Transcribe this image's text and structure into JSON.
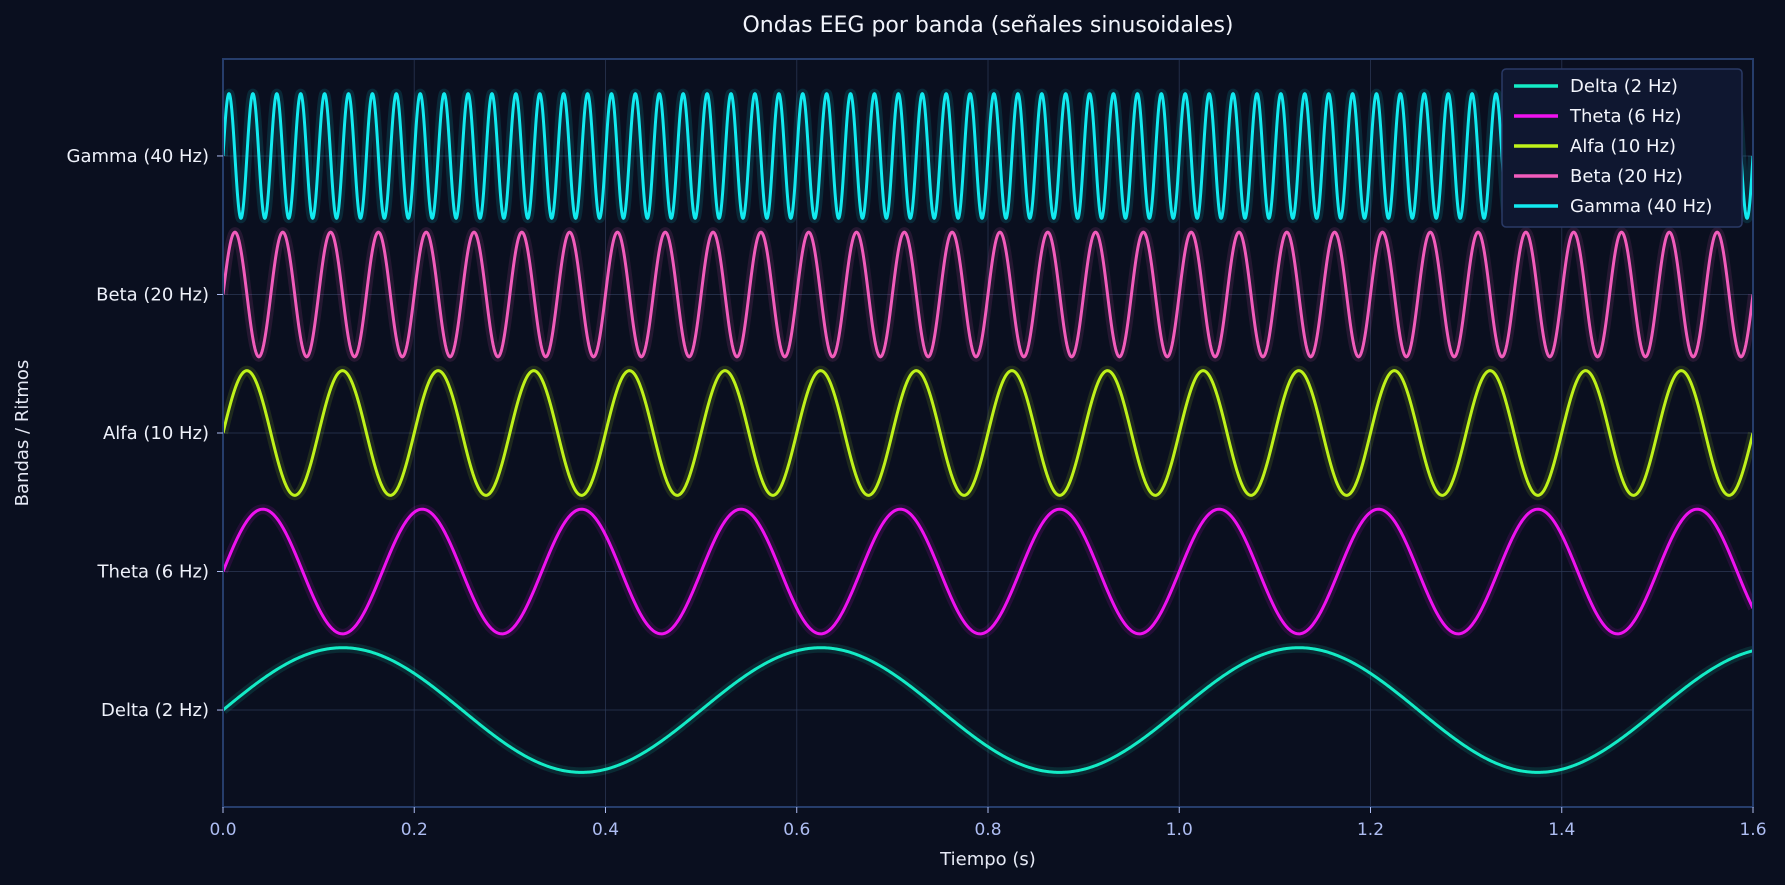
{
  "chart_data": {
    "type": "line",
    "title": "Ondas EEG por banda (señales sinusoidales)",
    "xlabel": "Tiempo (s)",
    "ylabel": "Bandas / Ritmos",
    "xlim": [
      0,
      1.6
    ],
    "x_ticks": [
      "0.0",
      "0.2",
      "0.4",
      "0.6",
      "0.8",
      "1.0",
      "1.2",
      "1.4",
      "1.6"
    ],
    "x_tick_values": [
      0,
      0.2,
      0.4,
      0.6,
      0.8,
      1.0,
      1.2,
      1.4,
      1.6
    ],
    "ylim": [
      -0.7,
      4.7
    ],
    "grid": true,
    "legend_position": "top-right",
    "amplitude": 0.45,
    "series": [
      {
        "name": "Delta (2 Hz)",
        "frequency_hz": 2,
        "offset": 0,
        "color": "#14ecc6"
      },
      {
        "name": "Theta (6 Hz)",
        "frequency_hz": 6,
        "offset": 1,
        "color": "#f012f0"
      },
      {
        "name": "Alfa (10 Hz)",
        "frequency_hz": 10,
        "offset": 2,
        "color": "#bff21a"
      },
      {
        "name": "Beta (20 Hz)",
        "frequency_hz": 20,
        "offset": 3,
        "color": "#f25cbc"
      },
      {
        "name": "Gamma (40 Hz)",
        "frequency_hz": 40,
        "offset": 4,
        "color": "#12eaf0"
      }
    ]
  }
}
